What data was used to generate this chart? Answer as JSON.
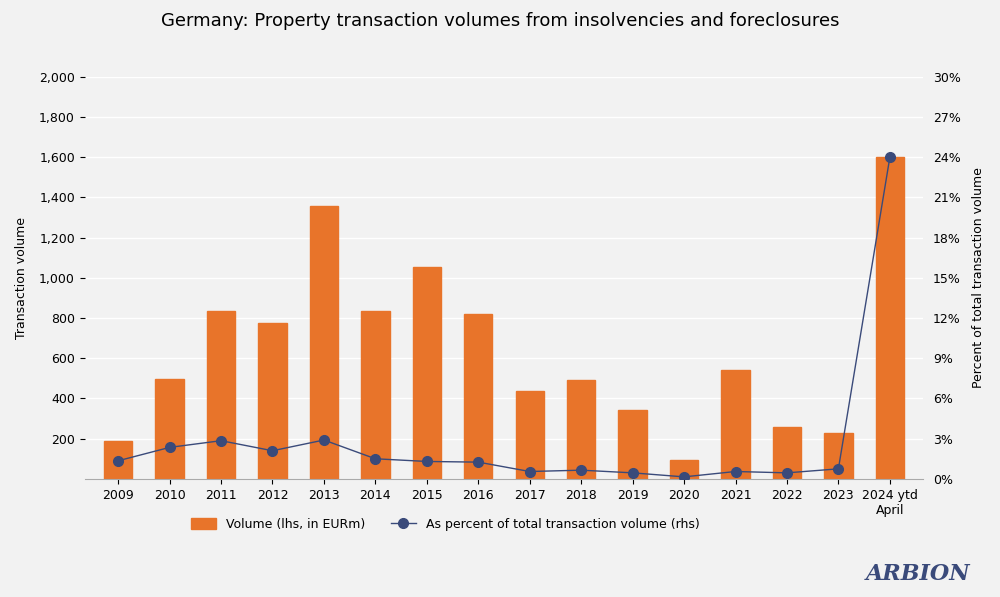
{
  "title": "Germany: Property transaction volumes from insolvencies and foreclosures",
  "categories": [
    "2009",
    "2010",
    "2011",
    "2012",
    "2013",
    "2014",
    "2015",
    "2016",
    "2017",
    "2018",
    "2019",
    "2020",
    "2021",
    "2022",
    "2023",
    "2024 ytd\nApril"
  ],
  "bar_values": [
    190,
    495,
    835,
    775,
    1360,
    835,
    1055,
    820,
    435,
    490,
    345,
    95,
    540,
    260,
    230,
    1600
  ],
  "line_values": [
    1.35,
    2.35,
    2.85,
    2.1,
    2.9,
    1.5,
    1.3,
    1.25,
    0.55,
    0.65,
    0.45,
    0.15,
    0.55,
    0.45,
    0.75,
    24.0
  ],
  "bar_color": "#E8742A",
  "line_color": "#3A4A7A",
  "ylabel_left": "Transaction volume",
  "ylabel_right": "Percent of total transaction volume",
  "ylim_left": [
    0,
    2000
  ],
  "ylim_right": [
    0,
    30
  ],
  "yticks_left": [
    200,
    400,
    600,
    800,
    1000,
    1200,
    1400,
    1600,
    1800,
    2000
  ],
  "ytick_labels_left": [
    "200",
    "400",
    "600",
    "800",
    "1,000",
    "1,200",
    "1,400",
    "1,600",
    "1,800",
    "2,000"
  ],
  "yticks_right": [
    0,
    3,
    6,
    9,
    12,
    15,
    18,
    21,
    24,
    27,
    30
  ],
  "ytick_labels_right": [
    "0%",
    "3%",
    "6%",
    "9%",
    "12%",
    "15%",
    "18%",
    "21%",
    "24%",
    "27%",
    "30%"
  ],
  "legend_bar_label": "Volume (lhs, in EURm)",
  "legend_line_label": "As percent of total transaction volume (rhs)",
  "background_color": "#F2F2F2",
  "plot_bg_color": "#F2F2F2",
  "grid_color": "#FFFFFF",
  "title_fontsize": 13,
  "axis_label_fontsize": 9,
  "tick_fontsize": 9,
  "arbion_text": "ARBION",
  "arbion_color": "#3A4A7A"
}
